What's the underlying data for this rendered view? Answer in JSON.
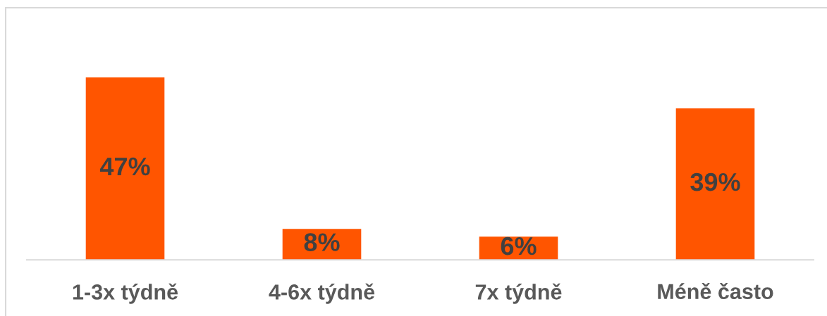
{
  "chart_data": {
    "type": "bar",
    "categories": [
      "1-3x týdně",
      "4-6x týdně",
      "7x týdně",
      "Méně často"
    ],
    "values": [
      47,
      8,
      6,
      39
    ],
    "color": "#ff5500",
    "value_labels": [
      "47%",
      "8%",
      "6%",
      "39%"
    ],
    "tick_labels": "x",
    "grid": false,
    "legend": false
  }
}
